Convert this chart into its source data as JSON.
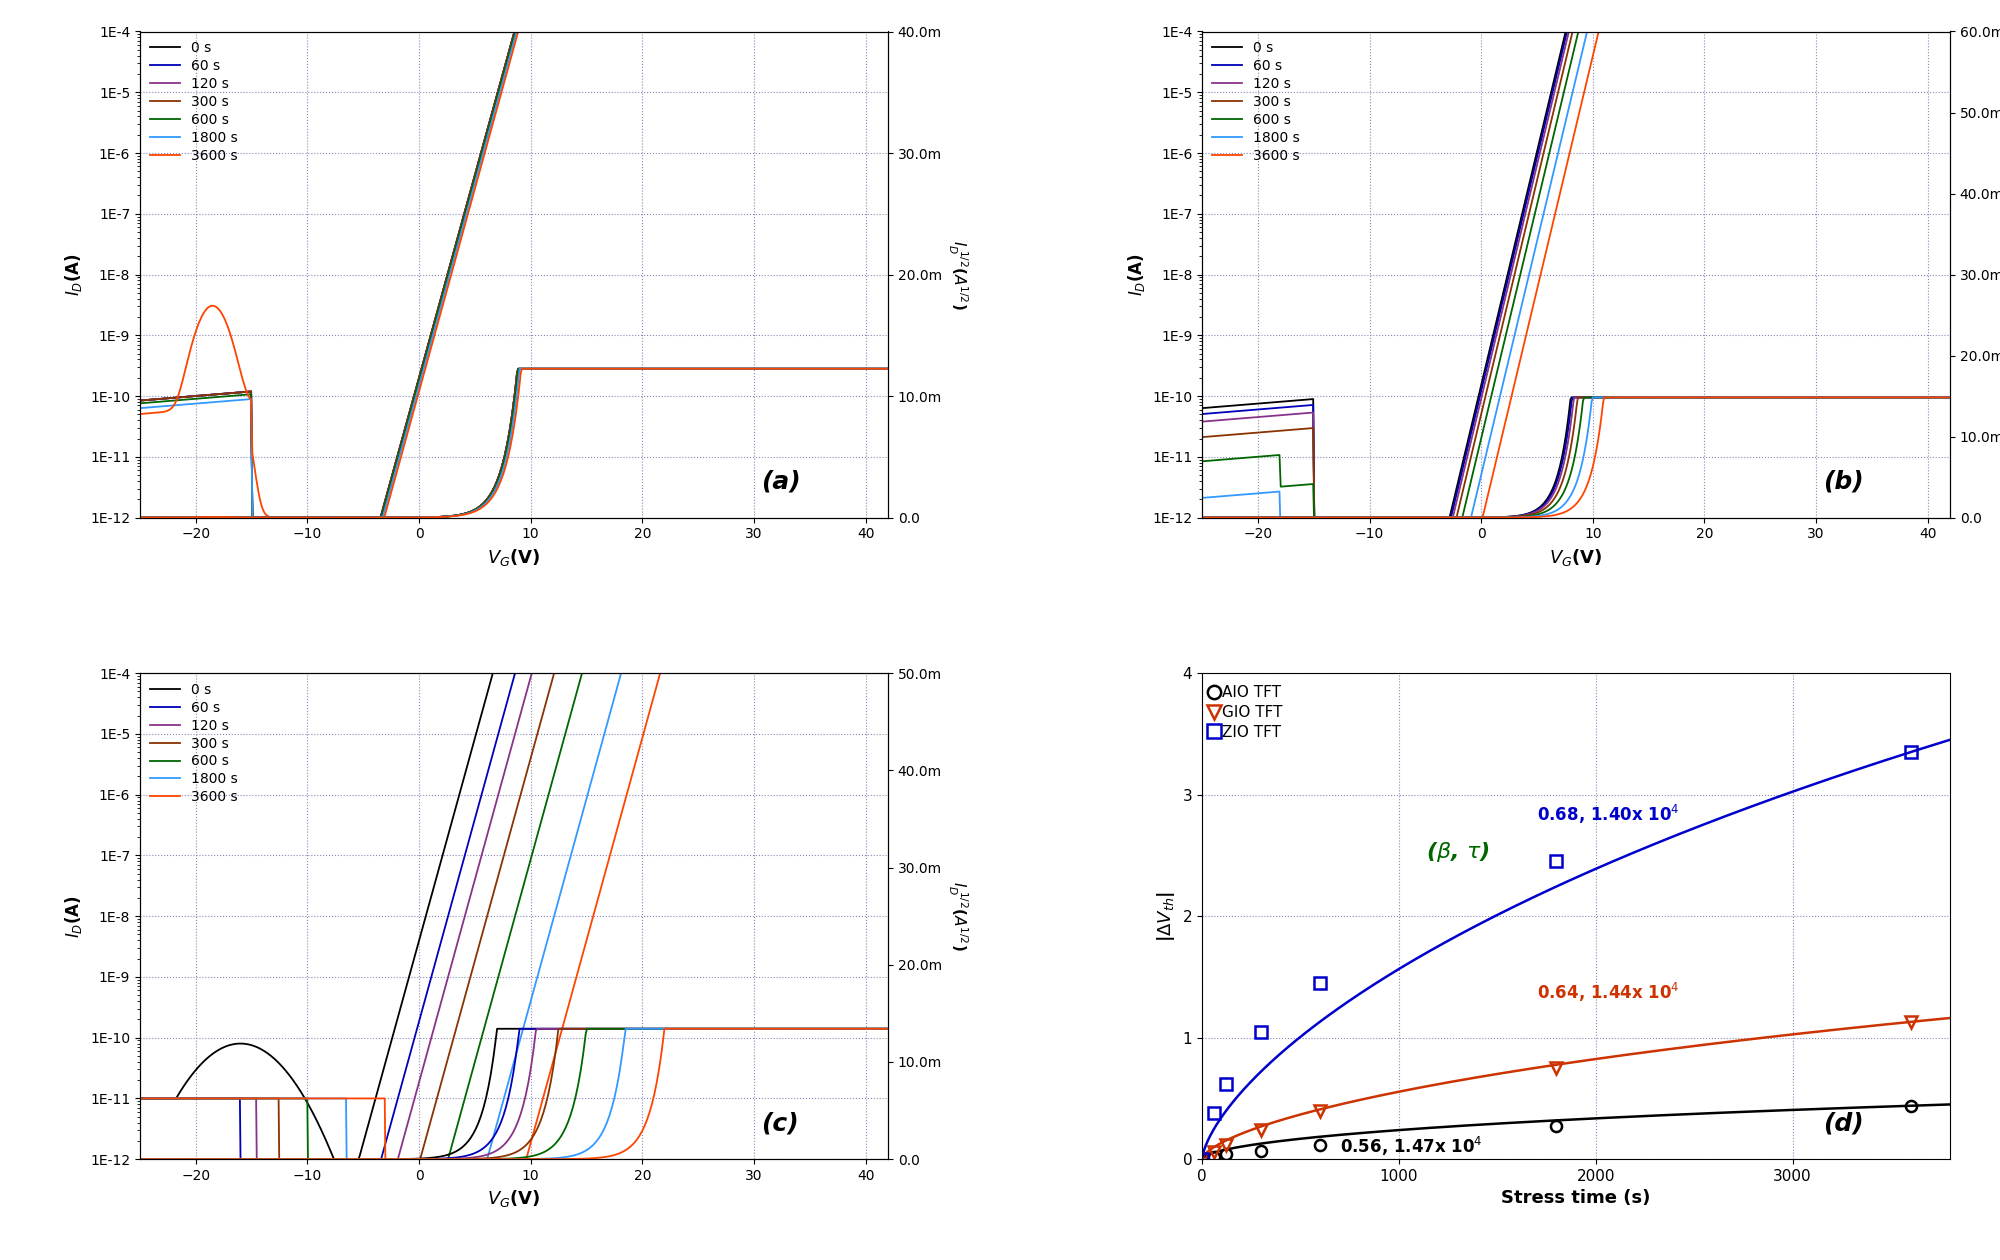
{
  "fig_width": 20.0,
  "fig_height": 12.6,
  "bg_color": "#ffffff",
  "panel_labels": [
    "(a)",
    "(b)",
    "(c)",
    "(d)"
  ],
  "time_labels": [
    "0 s",
    "60 s",
    "120 s",
    "300 s",
    "600 s",
    "1800 s",
    "3600 s"
  ],
  "colors": [
    "#000000",
    "#0000bb",
    "#883388",
    "#883300",
    "#006600",
    "#3399ff",
    "#ff4400"
  ],
  "grid_color": "#8888bb",
  "grid_style": ":",
  "d_stress_times": [
    0,
    60,
    120,
    300,
    600,
    1800,
    3600
  ],
  "d_aio_dvth": [
    0.0,
    0.02,
    0.04,
    0.07,
    0.12,
    0.27,
    0.44
  ],
  "d_gio_dvth": [
    0.0,
    0.06,
    0.12,
    0.24,
    0.4,
    0.75,
    1.13
  ],
  "d_zio_dvth": [
    0.0,
    0.38,
    0.62,
    1.05,
    1.45,
    2.45,
    3.35
  ],
  "d_aio_beta": 0.56,
  "d_aio_tau": 14700,
  "d_gio_beta": 0.64,
  "d_gio_tau": 14400,
  "d_zio_beta": 0.68,
  "d_zio_tau": 14000,
  "d_ylim": [
    0,
    4
  ],
  "d_xlim": [
    0,
    3800
  ]
}
